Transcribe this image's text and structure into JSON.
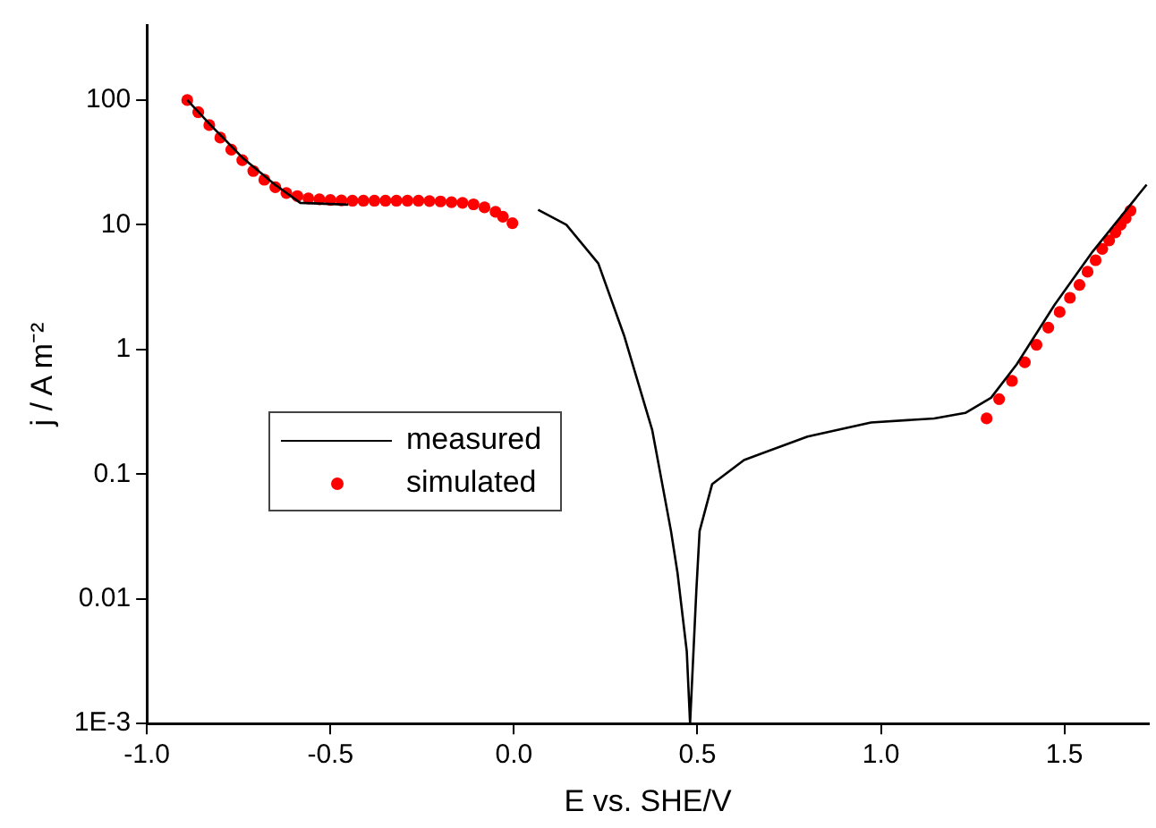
{
  "chart_data": {
    "type": "scatter",
    "xlabel": "E vs. SHE/V",
    "ylabel": "j / A m⁻²",
    "log": "y",
    "grid": false,
    "legend": "center left",
    "xlim": [
      -1.0,
      1.73
    ],
    "xticks": [
      {
        "value": -1.0,
        "label": "-1.0"
      },
      {
        "value": -0.5,
        "label": "-0.5"
      },
      {
        "value": 0,
        "label": "0.0"
      },
      {
        "value": 0.5,
        "label": "0.5"
      },
      {
        "value": 1.0,
        "label": "1.0"
      },
      {
        "value": 1.5,
        "label": "1.5"
      }
    ],
    "ylim": [
      0.001,
      400
    ],
    "yticks": [
      {
        "value": 0.001,
        "label": "1E-3"
      },
      0.01,
      0.1,
      1,
      10,
      100
    ],
    "series": [
      {
        "name": "measured",
        "type": "line",
        "color": "#000000",
        "marker": "none",
        "line_style": "solid",
        "x": [
          -0.89,
          -0.824,
          -0.737,
          -0.651,
          -0.582,
          -0.452,
          0.0,
          0.066,
          0.143,
          0.23,
          0.3,
          0.377,
          0.428,
          0.446,
          0.471,
          0.48,
          0.497,
          0.506,
          0.54,
          0.627,
          0.8,
          0.973,
          1.145,
          1.23,
          1.3,
          1.37,
          1.473,
          1.577,
          1.724
        ],
        "values": [
          100,
          62,
          34,
          21,
          15,
          14.5,
          null,
          13.2,
          10,
          4.9,
          1.3,
          0.225,
          0.035,
          0.016,
          0.0038,
          0.001,
          0.0115,
          0.035,
          0.083,
          0.13,
          0.2,
          0.26,
          0.28,
          0.31,
          0.41,
          0.76,
          2.28,
          6.1,
          21
        ]
      },
      {
        "name": "simulated",
        "color": "#ff0000",
        "marker": "circle",
        "x": [
          -0.89,
          -0.86,
          -0.83,
          -0.8,
          -0.77,
          -0.74,
          -0.71,
          -0.68,
          -0.65,
          -0.62,
          -0.59,
          -0.56,
          -0.53,
          -0.5,
          -0.47,
          -0.44,
          -0.41,
          -0.38,
          -0.35,
          -0.32,
          -0.29,
          -0.26,
          -0.23,
          -0.2,
          -0.17,
          -0.14,
          -0.11,
          -0.08,
          -0.05,
          -0.03,
          -0.004,
          1.288,
          1.322,
          1.357,
          1.392,
          1.424,
          1.456,
          1.487,
          1.515,
          1.541,
          1.563,
          1.585,
          1.603,
          1.622,
          1.639,
          1.653,
          1.667,
          1.68
        ],
        "values": [
          100,
          80,
          63,
          50,
          40,
          33,
          27,
          23,
          20,
          18,
          17,
          16.3,
          16,
          15.8,
          15.7,
          15.6,
          15.6,
          15.6,
          15.6,
          15.6,
          15.6,
          15.6,
          15.5,
          15.4,
          15.2,
          15,
          14.6,
          13.8,
          12.7,
          11.6,
          10.3,
          0.28,
          0.4,
          0.56,
          0.79,
          1.09,
          1.5,
          2.0,
          2.6,
          3.3,
          4.2,
          5.2,
          6.4,
          7.5,
          8.7,
          10,
          11.3,
          13
        ]
      }
    ]
  }
}
